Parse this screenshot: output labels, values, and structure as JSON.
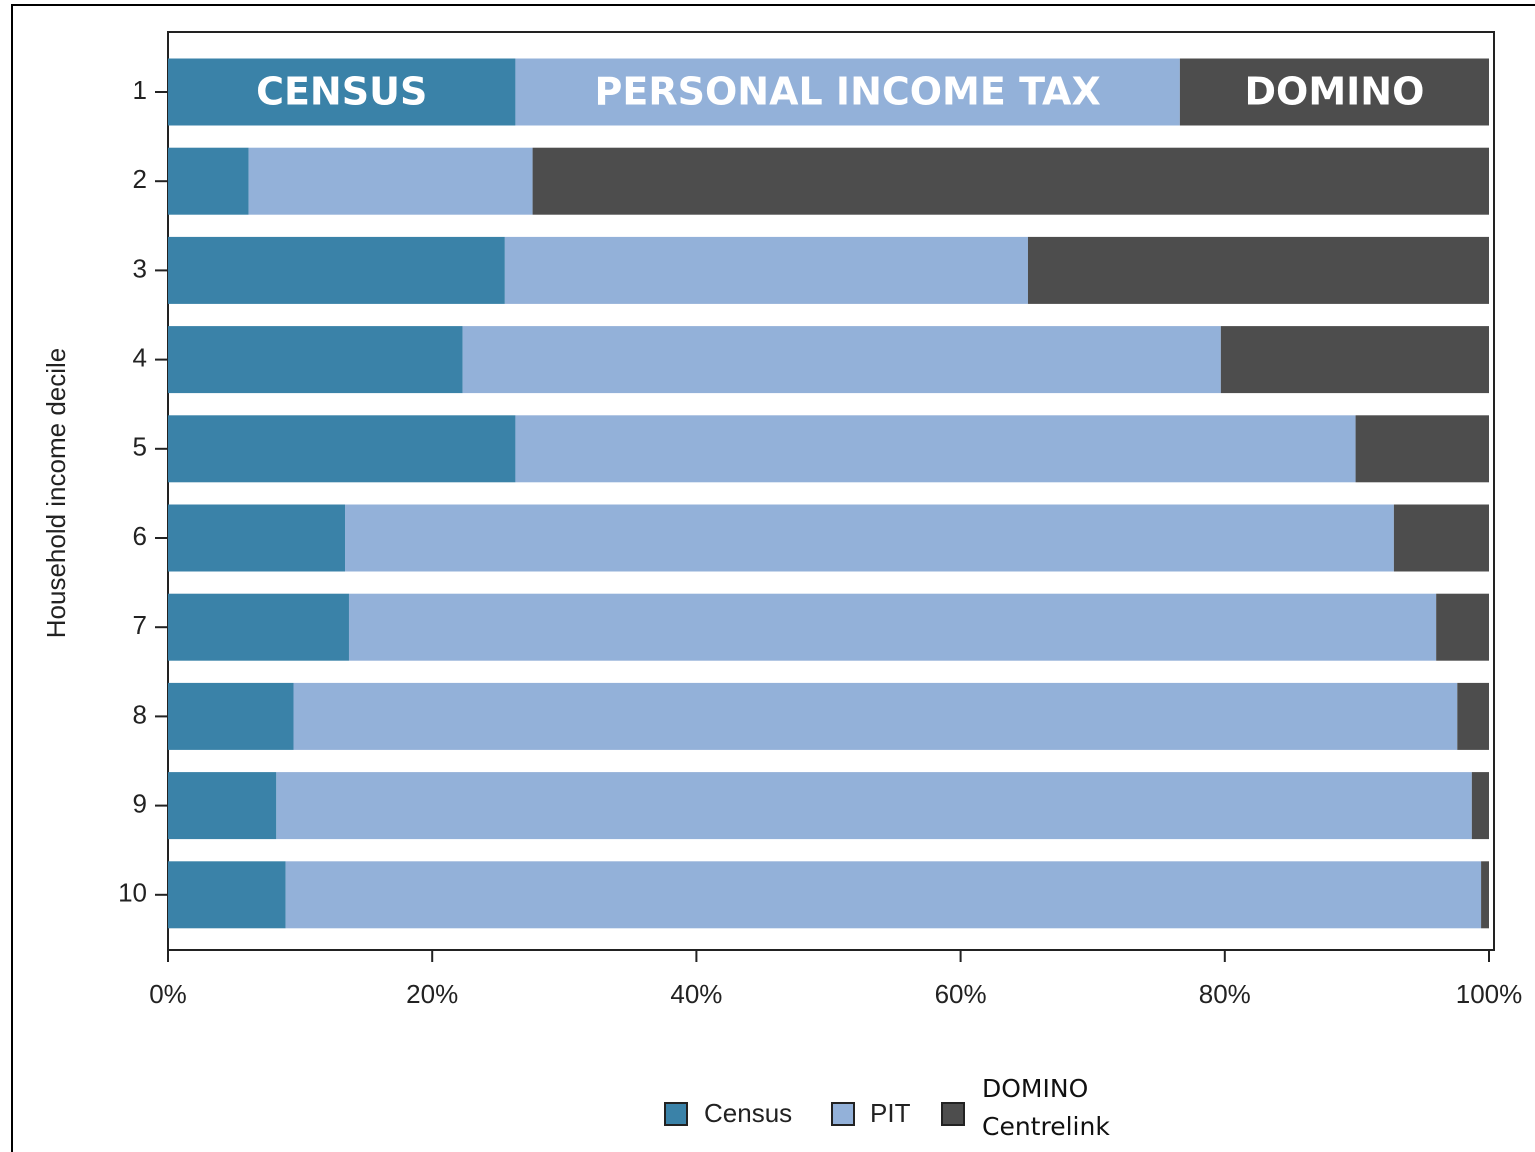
{
  "chart_data": {
    "type": "stacked-barh",
    "ylabel": "Household income decile",
    "categories": [
      "1",
      "2",
      "3",
      "4",
      "5",
      "6",
      "7",
      "8",
      "9",
      "10"
    ],
    "series": [
      {
        "name": "Census",
        "color": "#3a82a8",
        "values": [
          26.3,
          6.1,
          25.5,
          22.3,
          26.3,
          13.4,
          13.7,
          9.5,
          8.2,
          8.9
        ]
      },
      {
        "name": "PIT",
        "color": "#93b1d9",
        "values": [
          50.3,
          21.5,
          39.6,
          57.4,
          63.6,
          79.4,
          82.3,
          88.1,
          90.5,
          90.5
        ]
      },
      {
        "name": "DOMINO Centrelink",
        "color": "#4d4d4d",
        "values": [
          23.4,
          72.4,
          34.9,
          20.3,
          10.1,
          7.2,
          4.0,
          2.4,
          1.3,
          0.6
        ]
      }
    ],
    "annotations": [
      "CENSUS",
      "PERSONAL INCOME TAX",
      "DOMINO"
    ],
    "xlim": [
      0,
      100
    ],
    "xticks": [
      {
        "value": 0,
        "label": "0%"
      },
      {
        "value": 20,
        "label": "20%"
      },
      {
        "value": 40,
        "label": "40%"
      },
      {
        "value": 60,
        "label": "60%"
      },
      {
        "value": 80,
        "label": "80%"
      },
      {
        "value": 100,
        "label": "100%"
      }
    ]
  }
}
